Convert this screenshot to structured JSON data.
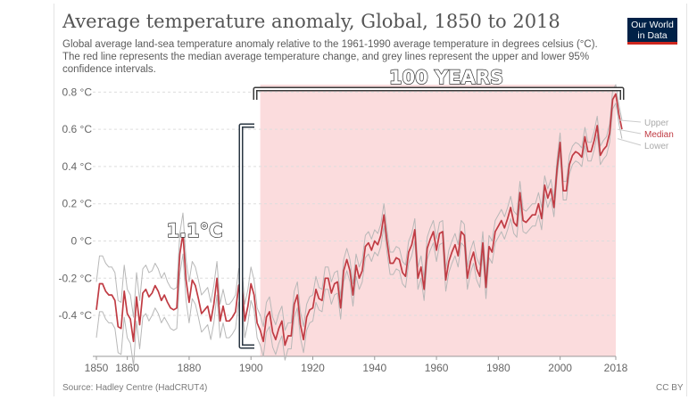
{
  "header": {
    "title": "Average temperature anomaly, Global, 1850 to 2018",
    "subtitle": "Global average land-sea temperature anomaly relative to the 1961-1990 average temperature in degrees celsius (°C). The red line represents the median average temperature change, and grey lines represent the upper and lower 95% confidence intervals."
  },
  "logo": {
    "line1": "Our World",
    "line2": "in Data"
  },
  "footer": {
    "source": "Source: Hadley Centre (HadCRUT4)",
    "license": "CC BY"
  },
  "colors": {
    "median": "#c03b43",
    "bounds": "#b8b8b8",
    "highlight": "#fbdcdd",
    "grid": "#dddddd",
    "bracket": "#2a3642",
    "logo_bg": "#002147",
    "logo_bar": "#ce261e"
  },
  "annotations": {
    "years_label": "100 YEARS",
    "warming_label": "1.1°C",
    "highlight_range": [
      1903,
      2018
    ]
  },
  "chart_data": {
    "type": "line",
    "title": "Average temperature anomaly, Global, 1850 to 2018",
    "x_ticks": [
      1850,
      1860,
      1880,
      1900,
      1920,
      1940,
      1960,
      1980,
      2000,
      2018
    ],
    "y_ticks": [
      -0.4,
      -0.2,
      0,
      0.2,
      0.4,
      0.6,
      0.8
    ],
    "y_tick_labels": [
      "-0.4 °C",
      "-0.2 °C",
      "0 °C",
      "0.2 °C",
      "0.4 °C",
      "0.6 °C",
      "0.8 °C"
    ],
    "xlim": [
      1850,
      2018
    ],
    "ylim": [
      -0.62,
      0.84
    ],
    "grid": "horizontal dashed",
    "legend_position": "right, at line ends",
    "series": [
      {
        "name": "Median",
        "values": [
          -0.37,
          -0.23,
          -0.23,
          -0.27,
          -0.29,
          -0.29,
          -0.32,
          -0.46,
          -0.47,
          -0.27,
          -0.39,
          -0.42,
          -0.54,
          -0.3,
          -0.45,
          -0.28,
          -0.26,
          -0.3,
          -0.28,
          -0.24,
          -0.27,
          -0.32,
          -0.29,
          -0.33,
          -0.36,
          -0.37,
          -0.36,
          -0.07,
          0.04,
          -0.21,
          -0.33,
          -0.21,
          -0.24,
          -0.31,
          -0.39,
          -0.37,
          -0.35,
          -0.43,
          -0.34,
          -0.2,
          -0.43,
          -0.35,
          -0.43,
          -0.43,
          -0.41,
          -0.38,
          -0.24,
          -0.21,
          -0.43,
          -0.35,
          -0.23,
          -0.29,
          -0.44,
          -0.48,
          -0.54,
          -0.41,
          -0.38,
          -0.49,
          -0.53,
          -0.47,
          -0.43,
          -0.56,
          -0.51,
          -0.51,
          -0.34,
          -0.29,
          -0.45,
          -0.53,
          -0.41,
          -0.37,
          -0.36,
          -0.26,
          -0.31,
          -0.32,
          -0.2,
          -0.2,
          -0.28,
          -0.23,
          -0.22,
          -0.36,
          -0.16,
          -0.1,
          -0.16,
          -0.29,
          -0.13,
          -0.2,
          -0.16,
          -0.03,
          -0.01,
          -0.05,
          0.0,
          -0.02,
          0.03,
          0.14,
          0.0,
          -0.12,
          -0.12,
          -0.09,
          -0.1,
          -0.17,
          -0.19,
          -0.06,
          -0.02,
          0.06,
          -0.2,
          -0.14,
          -0.26,
          -0.04,
          0.01,
          0.05,
          -0.05,
          0.04,
          0.05,
          -0.21,
          -0.11,
          -0.06,
          -0.02,
          -0.08,
          0.05,
          0.03,
          -0.2,
          -0.11,
          -0.06,
          -0.15,
          -0.19,
          -0.01,
          -0.25,
          -0.03,
          -0.06,
          0.05,
          0.08,
          0.11,
          0.07,
          0.12,
          0.18,
          0.1,
          0.08,
          0.26,
          0.11,
          0.1,
          0.12,
          0.14,
          0.14,
          0.2,
          0.12,
          0.3,
          0.23,
          0.28,
          0.18,
          0.39,
          0.53,
          0.27,
          0.27,
          0.41,
          0.46,
          0.48,
          0.47,
          0.45,
          0.56,
          0.48,
          0.48,
          0.54,
          0.62,
          0.46,
          0.49,
          0.51,
          0.58,
          0.76,
          0.79,
          0.68,
          0.6
        ]
      },
      {
        "name": "Upper",
        "values": [
          -0.22,
          -0.08,
          -0.08,
          -0.12,
          -0.14,
          -0.14,
          -0.17,
          -0.32,
          -0.33,
          -0.13,
          -0.26,
          -0.29,
          -0.41,
          -0.17,
          -0.32,
          -0.15,
          -0.13,
          -0.17,
          -0.16,
          -0.12,
          -0.15,
          -0.2,
          -0.17,
          -0.22,
          -0.25,
          -0.26,
          -0.25,
          0.04,
          0.15,
          -0.1,
          -0.22,
          -0.11,
          -0.14,
          -0.21,
          -0.29,
          -0.27,
          -0.25,
          -0.33,
          -0.24,
          -0.11,
          -0.34,
          -0.26,
          -0.34,
          -0.34,
          -0.32,
          -0.29,
          -0.15,
          -0.12,
          -0.34,
          -0.26,
          -0.14,
          -0.21,
          -0.36,
          -0.4,
          -0.46,
          -0.33,
          -0.3,
          -0.41,
          -0.45,
          -0.39,
          -0.35,
          -0.48,
          -0.44,
          -0.44,
          -0.27,
          -0.22,
          -0.38,
          -0.46,
          -0.34,
          -0.3,
          -0.29,
          -0.19,
          -0.25,
          -0.26,
          -0.14,
          -0.14,
          -0.22,
          -0.17,
          -0.16,
          -0.3,
          -0.1,
          -0.04,
          -0.1,
          -0.23,
          -0.07,
          -0.14,
          -0.1,
          0.03,
          0.05,
          0.01,
          0.06,
          0.04,
          0.09,
          0.2,
          0.06,
          -0.06,
          -0.06,
          -0.03,
          -0.04,
          -0.11,
          -0.13,
          0.0,
          0.04,
          0.12,
          -0.14,
          -0.08,
          -0.2,
          0.02,
          0.07,
          0.11,
          0.01,
          0.1,
          0.11,
          -0.15,
          -0.05,
          0.0,
          0.04,
          -0.02,
          0.11,
          0.09,
          -0.14,
          -0.05,
          0.0,
          -0.09,
          -0.13,
          0.05,
          -0.19,
          0.03,
          0.0,
          0.11,
          0.14,
          0.17,
          0.13,
          0.18,
          0.24,
          0.16,
          0.14,
          0.32,
          0.17,
          0.16,
          0.18,
          0.2,
          0.2,
          0.26,
          0.18,
          0.35,
          0.28,
          0.33,
          0.23,
          0.44,
          0.58,
          0.32,
          0.32,
          0.46,
          0.51,
          0.53,
          0.52,
          0.5,
          0.61,
          0.53,
          0.53,
          0.59,
          0.67,
          0.51,
          0.54,
          0.56,
          0.63,
          0.81,
          0.84,
          0.73,
          0.65
        ]
      },
      {
        "name": "Lower",
        "values": [
          -0.52,
          -0.38,
          -0.38,
          -0.42,
          -0.44,
          -0.44,
          -0.47,
          -0.6,
          -0.61,
          -0.41,
          -0.52,
          -0.55,
          -0.67,
          -0.43,
          -0.58,
          -0.41,
          -0.39,
          -0.43,
          -0.4,
          -0.36,
          -0.39,
          -0.44,
          -0.41,
          -0.44,
          -0.47,
          -0.48,
          -0.47,
          -0.18,
          -0.07,
          -0.32,
          -0.44,
          -0.31,
          -0.34,
          -0.41,
          -0.49,
          -0.47,
          -0.45,
          -0.53,
          -0.44,
          -0.29,
          -0.52,
          -0.44,
          -0.52,
          -0.52,
          -0.5,
          -0.47,
          -0.33,
          -0.3,
          -0.52,
          -0.44,
          -0.32,
          -0.37,
          -0.52,
          -0.56,
          -0.62,
          -0.49,
          -0.46,
          -0.57,
          -0.61,
          -0.55,
          -0.51,
          -0.64,
          -0.58,
          -0.58,
          -0.41,
          -0.36,
          -0.52,
          -0.6,
          -0.48,
          -0.44,
          -0.43,
          -0.33,
          -0.37,
          -0.38,
          -0.26,
          -0.26,
          -0.34,
          -0.29,
          -0.28,
          -0.42,
          -0.22,
          -0.16,
          -0.22,
          -0.35,
          -0.19,
          -0.26,
          -0.22,
          -0.09,
          -0.07,
          -0.11,
          -0.06,
          -0.08,
          -0.03,
          0.08,
          -0.06,
          -0.18,
          -0.18,
          -0.15,
          -0.16,
          -0.23,
          -0.25,
          -0.12,
          -0.08,
          0.0,
          -0.26,
          -0.2,
          -0.32,
          -0.1,
          -0.05,
          -0.01,
          -0.11,
          -0.02,
          -0.01,
          -0.27,
          -0.17,
          -0.12,
          -0.08,
          -0.14,
          -0.01,
          -0.03,
          -0.26,
          -0.17,
          -0.12,
          -0.21,
          -0.25,
          -0.07,
          -0.31,
          -0.09,
          -0.12,
          -0.01,
          0.02,
          0.05,
          0.01,
          0.06,
          0.12,
          0.04,
          0.02,
          0.2,
          0.05,
          0.04,
          0.06,
          0.08,
          0.08,
          0.14,
          0.06,
          0.25,
          0.18,
          0.23,
          0.13,
          0.34,
          0.48,
          0.22,
          0.22,
          0.36,
          0.41,
          0.43,
          0.42,
          0.4,
          0.51,
          0.43,
          0.43,
          0.49,
          0.57,
          0.41,
          0.44,
          0.46,
          0.53,
          0.71,
          0.74,
          0.63,
          0.55
        ]
      }
    ]
  }
}
